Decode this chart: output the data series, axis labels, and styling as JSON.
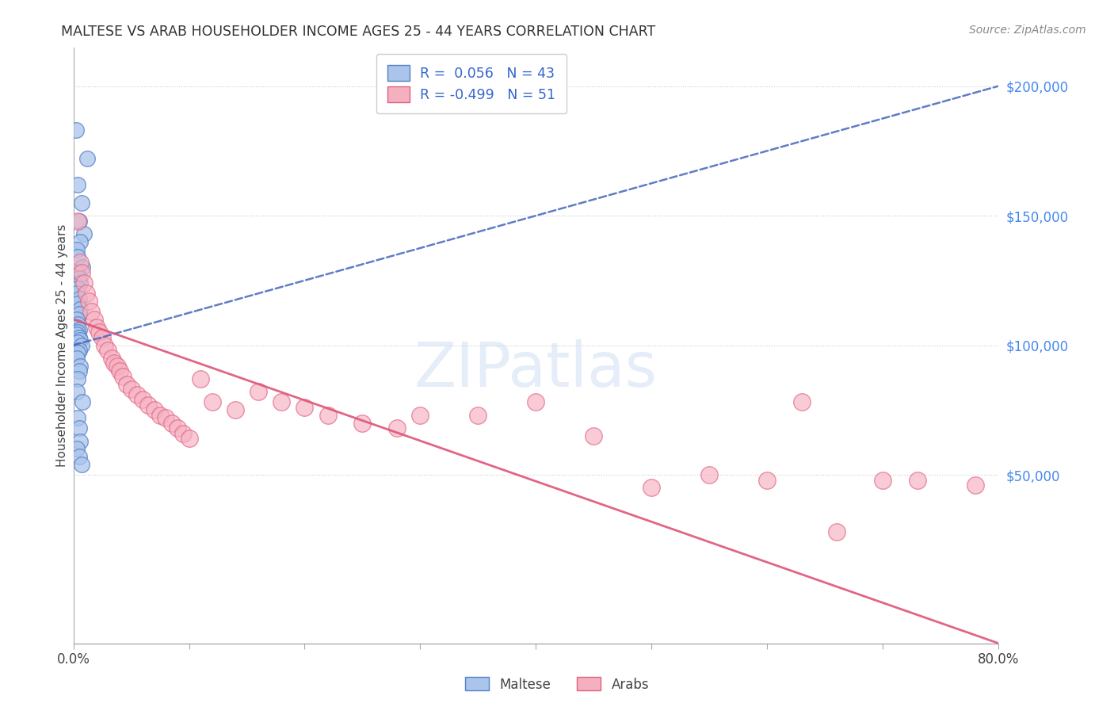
{
  "title": "MALTESE VS ARAB HOUSEHOLDER INCOME AGES 25 - 44 YEARS CORRELATION CHART",
  "source": "Source: ZipAtlas.com",
  "ylabel": "Householder Income Ages 25 - 44 years",
  "xlim": [
    0.0,
    0.8
  ],
  "ylim": [
    -15000,
    215000
  ],
  "xticks": [
    0.0,
    0.1,
    0.2,
    0.3,
    0.4,
    0.5,
    0.6,
    0.7,
    0.8
  ],
  "xticklabels": [
    "0.0%",
    "",
    "",
    "",
    "",
    "",
    "",
    "",
    "80.0%"
  ],
  "yticks_right": [
    50000,
    100000,
    150000,
    200000
  ],
  "ytick_labels_right": [
    "$50,000",
    "$100,000",
    "$150,000",
    "$200,000"
  ],
  "maltese_R": 0.056,
  "maltese_N": 43,
  "arab_R": -0.499,
  "arab_N": 51,
  "maltese_color": "#aac4ea",
  "maltese_edge_color": "#5580c8",
  "arab_color": "#f5b0c0",
  "arab_edge_color": "#e06080",
  "maltese_line_color": "#4466bb",
  "arab_line_color": "#dd5577",
  "watermark_color": "#ccddf5",
  "maltese_line_x0": 0.0,
  "maltese_line_y0": 100000,
  "maltese_line_x1": 0.8,
  "maltese_line_y1": 200000,
  "arab_line_x0": 0.0,
  "arab_line_y0": 110000,
  "arab_line_x1": 0.8,
  "arab_line_y1": -15000,
  "maltese_x": [
    0.002,
    0.012,
    0.004,
    0.007,
    0.005,
    0.009,
    0.006,
    0.003,
    0.004,
    0.008,
    0.003,
    0.005,
    0.006,
    0.004,
    0.003,
    0.005,
    0.004,
    0.006,
    0.005,
    0.003,
    0.004,
    0.003,
    0.005,
    0.004,
    0.003,
    0.005,
    0.006,
    0.004,
    0.007,
    0.005,
    0.004,
    0.003,
    0.006,
    0.005,
    0.004,
    0.003,
    0.008,
    0.004,
    0.005,
    0.006,
    0.003,
    0.005,
    0.007
  ],
  "maltese_y": [
    183000,
    172000,
    162000,
    155000,
    148000,
    143000,
    140000,
    137000,
    134000,
    130000,
    128000,
    126000,
    124000,
    122000,
    120000,
    118000,
    116000,
    114000,
    112000,
    110000,
    108000,
    107000,
    106000,
    105000,
    104000,
    103000,
    102000,
    101000,
    100000,
    98000,
    97000,
    95000,
    92000,
    90000,
    87000,
    82000,
    78000,
    72000,
    68000,
    63000,
    60000,
    57000,
    54000
  ],
  "arab_x": [
    0.004,
    0.006,
    0.007,
    0.009,
    0.011,
    0.013,
    0.015,
    0.018,
    0.02,
    0.022,
    0.025,
    0.027,
    0.03,
    0.033,
    0.035,
    0.038,
    0.04,
    0.043,
    0.046,
    0.05,
    0.055,
    0.06,
    0.065,
    0.07,
    0.075,
    0.08,
    0.085,
    0.09,
    0.095,
    0.1,
    0.11,
    0.12,
    0.14,
    0.16,
    0.18,
    0.2,
    0.22,
    0.25,
    0.28,
    0.3,
    0.35,
    0.4,
    0.45,
    0.5,
    0.55,
    0.6,
    0.63,
    0.66,
    0.7,
    0.73,
    0.78
  ],
  "arab_y": [
    148000,
    132000,
    128000,
    124000,
    120000,
    117000,
    113000,
    110000,
    107000,
    105000,
    103000,
    100000,
    98000,
    95000,
    93000,
    92000,
    90000,
    88000,
    85000,
    83000,
    81000,
    79000,
    77000,
    75000,
    73000,
    72000,
    70000,
    68000,
    66000,
    64000,
    87000,
    78000,
    75000,
    82000,
    78000,
    76000,
    73000,
    70000,
    68000,
    73000,
    73000,
    78000,
    65000,
    45000,
    50000,
    48000,
    78000,
    28000,
    48000,
    48000,
    46000
  ]
}
